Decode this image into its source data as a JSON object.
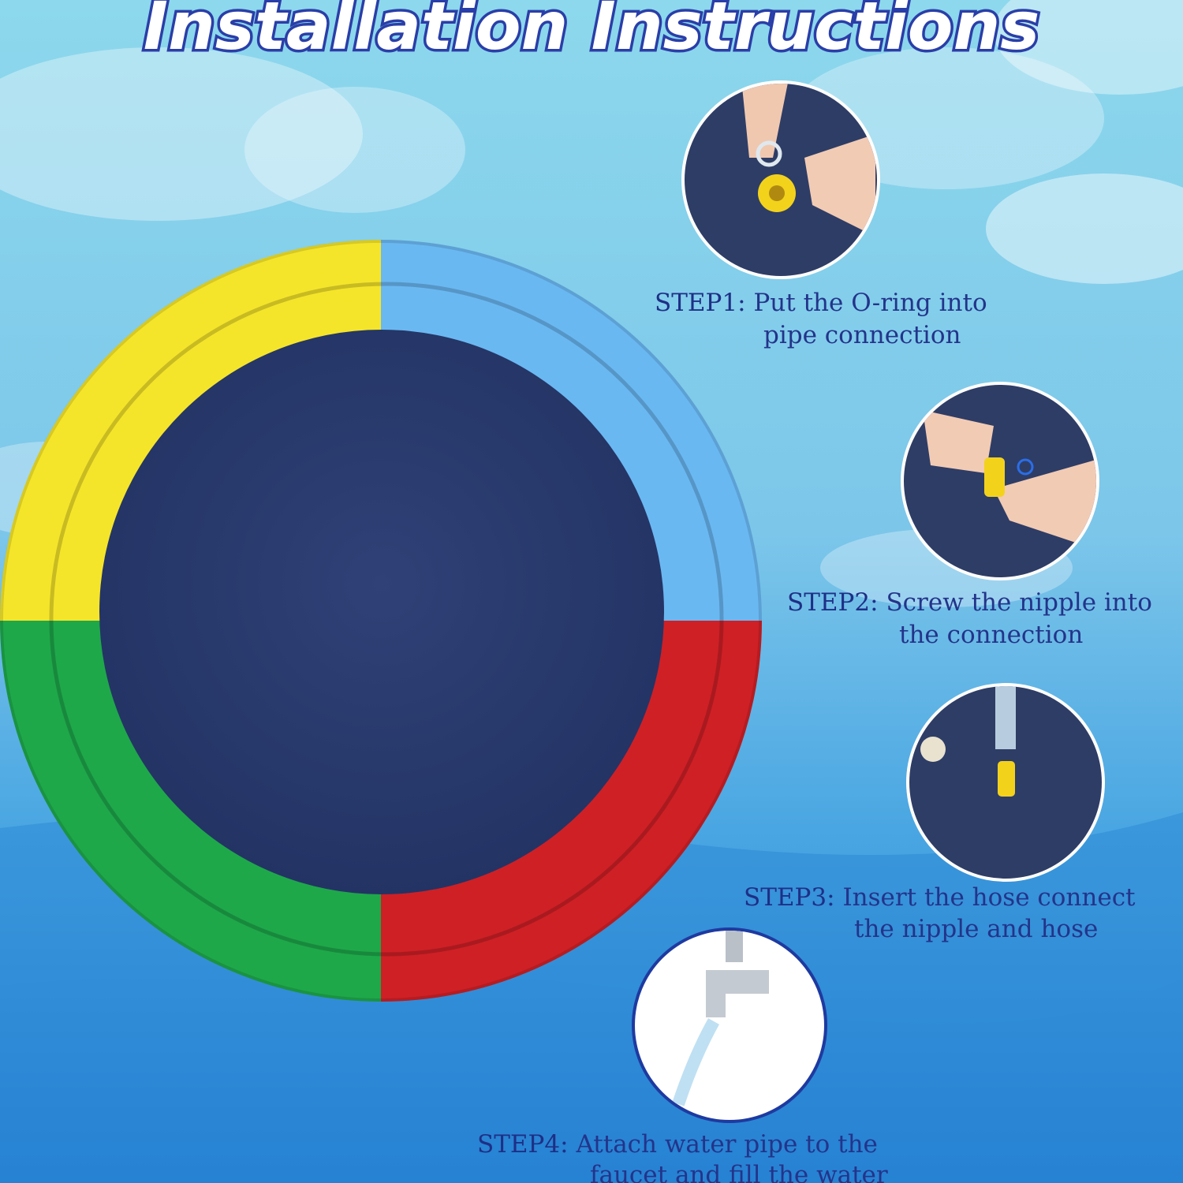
{
  "title": "Installation Instructions",
  "colors": {
    "yellow": "#f5e52a",
    "blue": "#6ab8f2",
    "green": "#1ea84a",
    "red": "#cf2026",
    "pool_floor": "#2b3a6c",
    "text": "#23348a"
  },
  "steps": [
    {
      "label": "STEP1:",
      "line1": "Put the O-ring into",
      "line2": "pipe connection",
      "image": "hands-inserting-o-ring-photo"
    },
    {
      "label": "STEP2:",
      "line1": "Screw the nipple into",
      "line2": "the connection",
      "image": "hands-screwing-nipple-photo"
    },
    {
      "label": "STEP3:",
      "line1": "Insert the hose connect",
      "line2": "the nipple and hose",
      "image": "hose-and-nipple-photo"
    },
    {
      "label": "STEP4:",
      "line1": "Attach water pipe to the",
      "line2": "faucet and fill the water",
      "image": "faucet-with-hose-photo"
    }
  ]
}
